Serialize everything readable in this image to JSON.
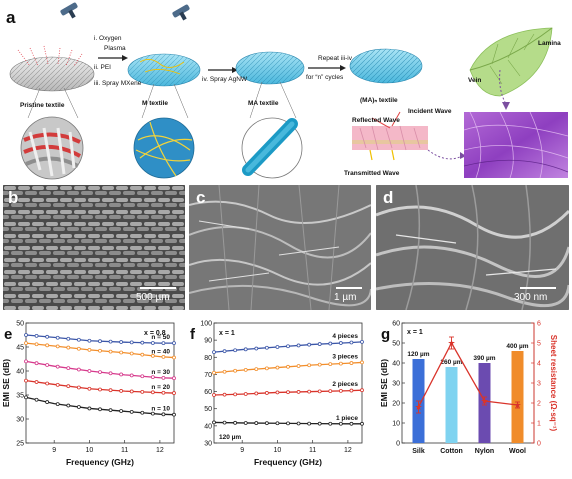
{
  "panel_a": {
    "letter": "a",
    "step1": "i. Oxygen",
    "step1b": "Plasma",
    "step2": "ii. PEI",
    "step3": "iii. Spray MXene",
    "step4": "iv. Spray AgNW",
    "repeat": "Repeat iii-iv",
    "cycles": "for “n” cycles",
    "stage_labels": [
      "Pristine textile",
      "M textile",
      "MA textile",
      "(MA)ₙ textile"
    ],
    "wave_reflected": "Reflected Wave",
    "wave_incident": "Incident Wave",
    "wave_transmitted": "Transmitted Wave",
    "leaf_lamina": "Lamina",
    "leaf_vein": "Vein"
  },
  "panel_b": {
    "letter": "b",
    "scale": "500 µm"
  },
  "panel_c": {
    "letter": "c",
    "scale": "1 µm"
  },
  "panel_d": {
    "letter": "d",
    "scale": "300 nm"
  },
  "colors": {
    "n50": "#3b56a8",
    "n40": "#f28e2b",
    "n30": "#d63a8c",
    "n20": "#d9342b",
    "n10": "#222222",
    "p4": "#3b56a8",
    "p3": "#f28e2b",
    "p2": "#d9342b",
    "p1": "#222222",
    "silk": "#3b6fd8",
    "cotton": "#7fd3f0",
    "nylon": "#6b4bb0",
    "wool": "#f08c2a",
    "sheet": "#d9342b"
  },
  "chart_data": [
    {
      "panel": "e",
      "type": "line",
      "annotation": "x = 0.8",
      "xlabel": "Frequency (GHz)",
      "ylabel": "EMI SE (dB)",
      "xlim": [
        8.2,
        12.4
      ],
      "ylim": [
        25,
        50
      ],
      "xticks": [
        "9",
        "10",
        "11",
        "12"
      ],
      "yticks": [
        "25",
        "30",
        "35",
        "40",
        "45",
        "50"
      ],
      "series": [
        {
          "name": "n = 50",
          "x": [
            8.2,
            9,
            10,
            11,
            12,
            12.4
          ],
          "values": [
            47.5,
            47.0,
            46.3,
            46.0,
            45.8,
            45.8
          ]
        },
        {
          "name": "n = 40",
          "x": [
            8.2,
            9,
            10,
            11,
            12,
            12.4
          ],
          "values": [
            45.8,
            45.2,
            44.4,
            43.8,
            43.0,
            42.8
          ]
        },
        {
          "name": "n = 30",
          "x": [
            8.2,
            9,
            10,
            11,
            12,
            12.4
          ],
          "values": [
            42.0,
            41.0,
            40.0,
            39.2,
            38.6,
            38.5
          ]
        },
        {
          "name": "n = 20",
          "x": [
            8.2,
            9,
            10,
            11,
            12,
            12.4
          ],
          "values": [
            38.0,
            37.2,
            36.3,
            35.8,
            35.5,
            35.4
          ]
        },
        {
          "name": "n = 10",
          "x": [
            8.2,
            9,
            10,
            11,
            12,
            12.4
          ],
          "values": [
            34.5,
            33.2,
            32.2,
            31.6,
            31.0,
            30.9
          ]
        }
      ]
    },
    {
      "panel": "f",
      "type": "line",
      "annotation": "x = 1",
      "note": "120 µm",
      "xlabel": "Frequency (GHz)",
      "ylabel": "",
      "xlim": [
        8.2,
        12.4
      ],
      "ylim": [
        30,
        100
      ],
      "xticks": [
        "9",
        "10",
        "11",
        "12"
      ],
      "yticks": [
        "30",
        "40",
        "50",
        "60",
        "70",
        "80",
        "90",
        "100"
      ],
      "series": [
        {
          "name": "4 pieces",
          "x": [
            8.2,
            9,
            10,
            11,
            12,
            12.4
          ],
          "values": [
            83.0,
            84.5,
            86.0,
            87.5,
            88.5,
            89.0
          ]
        },
        {
          "name": "3 pieces",
          "x": [
            8.2,
            9,
            10,
            11,
            12,
            12.4
          ],
          "values": [
            71.0,
            72.5,
            74.0,
            75.5,
            76.5,
            77.0
          ]
        },
        {
          "name": "2 pieces",
          "x": [
            8.2,
            9,
            10,
            11,
            12,
            12.4
          ],
          "values": [
            58.0,
            58.5,
            59.5,
            60.0,
            60.5,
            60.8
          ]
        },
        {
          "name": "1 piece",
          "x": [
            8.2,
            9,
            10,
            11,
            12,
            12.4
          ],
          "values": [
            42.0,
            41.7,
            41.5,
            41.3,
            41.2,
            41.2
          ]
        }
      ]
    },
    {
      "panel": "g",
      "type": "bar",
      "annotation": "x = 1",
      "categories": [
        "Silk",
        "Cotton",
        "Nylon",
        "Wool"
      ],
      "bar_labels": [
        "120 µm",
        "260 µm",
        "390 µm",
        "400 µm"
      ],
      "values": [
        42,
        38,
        40,
        46
      ],
      "ylabel": "EMI SE (dB)",
      "ylim": [
        0,
        60
      ],
      "yticks": [
        "0",
        "10",
        "20",
        "30",
        "40",
        "50",
        "60"
      ],
      "secondary": {
        "ylabel": "Sheet resistance (Ω·sq⁻¹)",
        "ylim": [
          0,
          6
        ],
        "yticks": [
          "0",
          "1",
          "2",
          "3",
          "4",
          "5",
          "6"
        ],
        "values": [
          1.8,
          5.0,
          2.1,
          1.9
        ],
        "errors": [
          0.3,
          0.3,
          0.2,
          0.15
        ]
      }
    }
  ]
}
